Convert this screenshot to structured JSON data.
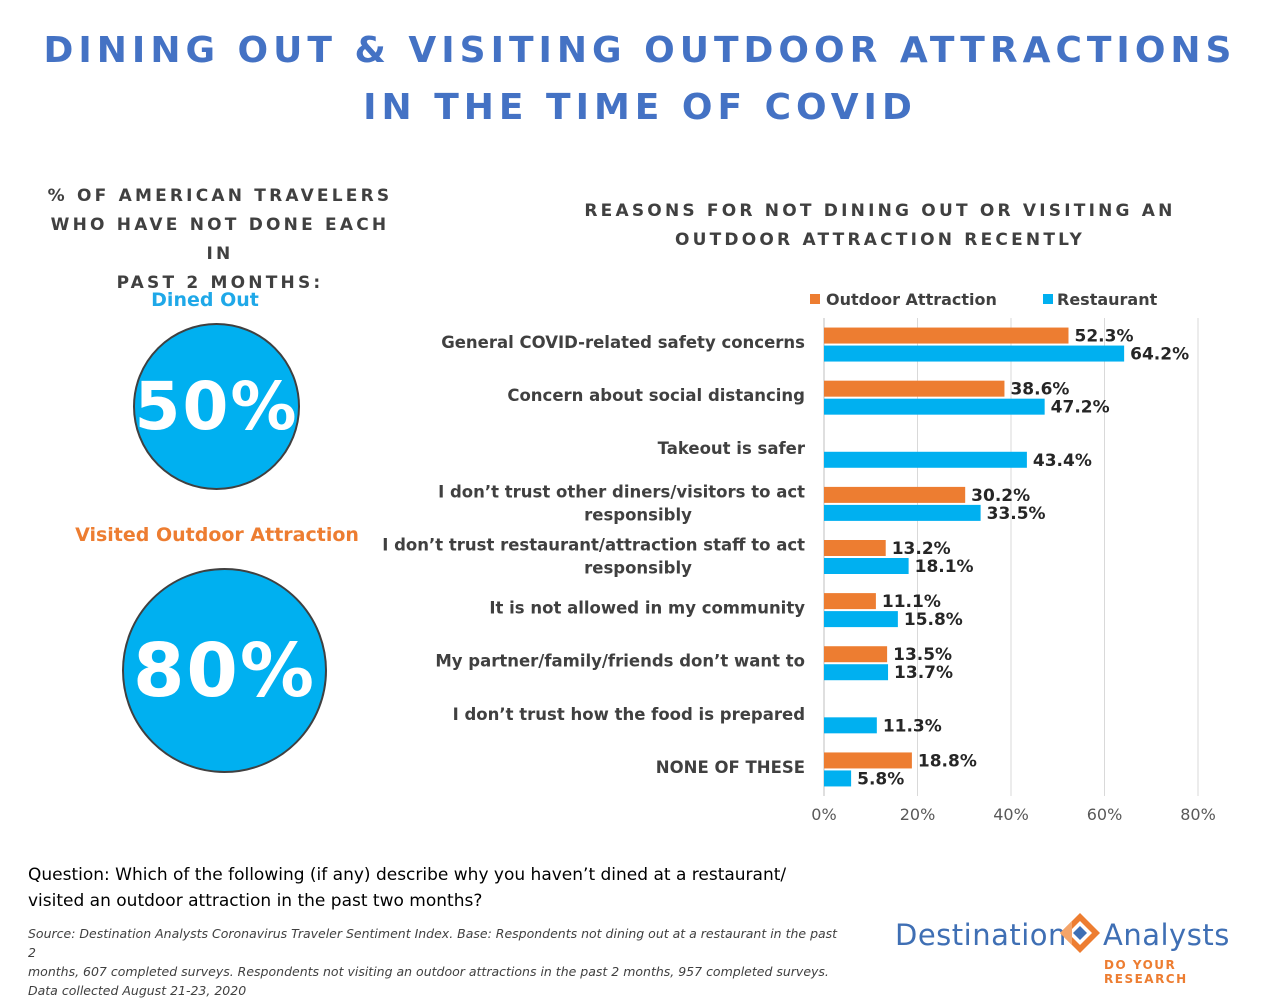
{
  "title": {
    "line1": "DINING OUT & VISITING OUTDOOR ATTRACTIONS",
    "line2": "IN THE TIME OF COVID"
  },
  "left_panel": {
    "heading_lines": [
      "% OF AMERICAN TRAVELERS",
      "WHO HAVE NOT DONE EACH IN",
      "PAST 2 MONTHS:"
    ],
    "metrics": [
      {
        "label": "Dined Out",
        "value": "50%"
      },
      {
        "label": "Visited Outdoor Attraction",
        "value": "80%"
      }
    ]
  },
  "right_panel": {
    "heading_lines": [
      "REASONS FOR NOT DINING OUT OR VISITING AN",
      "OUTDOOR ATTRACTION RECENTLY"
    ]
  },
  "chart_data": {
    "type": "bar",
    "orientation": "horizontal",
    "title": "REASONS FOR NOT DINING OUT OR VISITING AN OUTDOOR ATTRACTION RECENTLY",
    "categories": [
      [
        "General COVID-related safety concerns"
      ],
      [
        "Concern about social distancing"
      ],
      [
        "Takeout is safer"
      ],
      [
        "I don’t trust other diners/visitors to act",
        "responsibly"
      ],
      [
        "I don’t trust restaurant/attraction  staff to act",
        "responsibly"
      ],
      [
        "It is not allowed in my community"
      ],
      [
        "My partner/family/friends  don’t want to"
      ],
      [
        "I don’t trust how the food is prepared"
      ],
      [
        "NONE OF THESE"
      ]
    ],
    "series": [
      {
        "name": "Outdoor Attraction",
        "color": "#ED7D31",
        "values": [
          52.3,
          38.6,
          null,
          30.2,
          13.2,
          11.1,
          13.5,
          null,
          18.8
        ]
      },
      {
        "name": "Restaurant",
        "color": "#00B0F0",
        "values": [
          64.2,
          47.2,
          43.4,
          33.5,
          18.1,
          15.8,
          13.7,
          11.3,
          5.8
        ]
      }
    ],
    "xlim": [
      0,
      80
    ],
    "xticks": [
      0,
      20,
      40,
      60,
      80
    ],
    "tick_suffix": "%",
    "legend": "top",
    "grid": true
  },
  "footer": {
    "question_lines": [
      "Question: Which of the following (if any) describe why you haven’t dined at a restaurant/",
      "visited an outdoor attraction in the past two months?"
    ],
    "source_lines": [
      "Source: Destination Analysts Coronavirus Traveler Sentiment Index. Base: Respondents not dining out at a restaurant in the past 2",
      "months, 607 completed surveys. Respondents not visiting an outdoor attractions in the past 2 months, 957 completed surveys.",
      "Data collected August 21-23, 2020"
    ]
  },
  "logo": {
    "word_left": "Destination",
    "word_right": "Analysts",
    "tagline": "DO YOUR RESEARCH",
    "color_blue": "#3F6FB4",
    "color_orange": "#ED7D31"
  }
}
